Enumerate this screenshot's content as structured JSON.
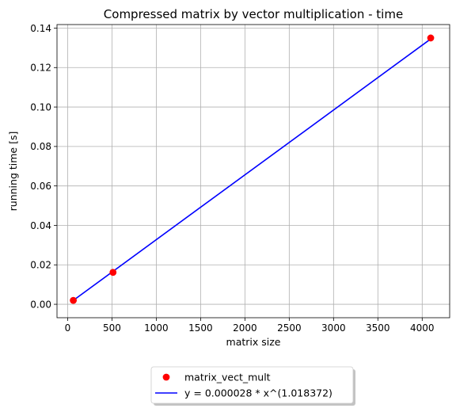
{
  "chart_data": {
    "type": "scatter",
    "title": "Compressed matrix by vector multiplication - time",
    "xlabel": "matrix size",
    "ylabel": "running time [s]",
    "xlim": [
      -120,
      4310
    ],
    "ylim": [
      -0.0068,
      0.1418
    ],
    "grid": true,
    "legend_position": "below-center",
    "xticks": [
      0,
      500,
      1000,
      1500,
      2000,
      2500,
      3000,
      3500,
      4000
    ],
    "xtick_labels": [
      "0",
      "500",
      "1000",
      "1500",
      "2000",
      "2500",
      "3000",
      "3500",
      "4000"
    ],
    "yticks": [
      0.0,
      0.02,
      0.04,
      0.06,
      0.08,
      0.1,
      0.12,
      0.14
    ],
    "ytick_labels": [
      "0.00",
      "0.02",
      "0.04",
      "0.06",
      "0.08",
      "0.10",
      "0.12",
      "0.14"
    ],
    "series": [
      {
        "name": "matrix_vect_mult",
        "kind": "points",
        "color": "#ff0000",
        "x": [
          64,
          512,
          4096
        ],
        "y": [
          0.002,
          0.0162,
          0.135
        ]
      },
      {
        "name": "y = 0.000028 * x^(1.018372)",
        "kind": "line",
        "color": "#0000ff",
        "x": [
          64,
          4096
        ],
        "y": [
          0.002,
          0.1345
        ]
      }
    ]
  }
}
